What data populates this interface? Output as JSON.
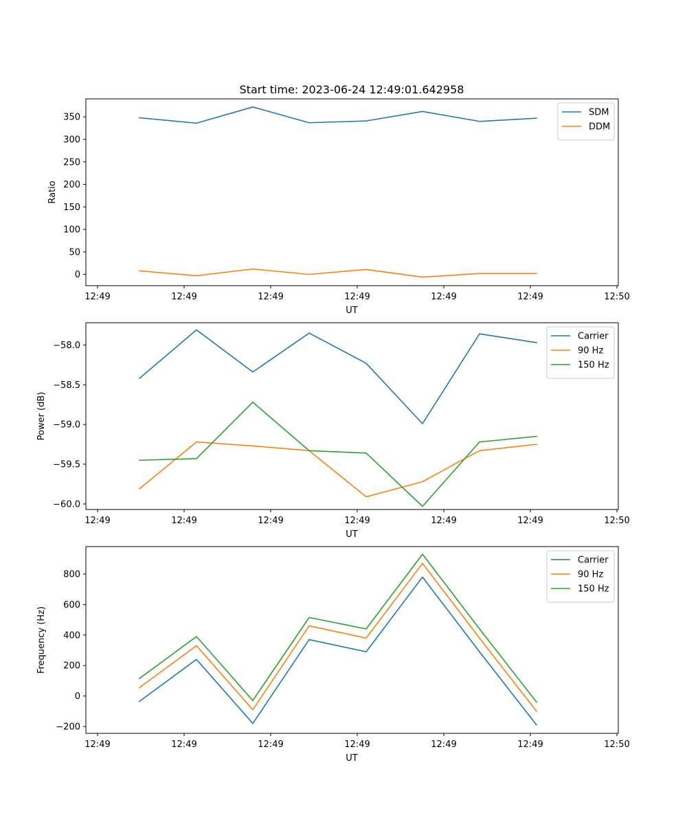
{
  "figure_title": "Start time: 2023-06-24 12:49:01.642958",
  "colors": {
    "blue": "#1f77b4",
    "orange": "#ff7f0e",
    "green": "#2ca02c"
  },
  "chart_data": [
    {
      "type": "line",
      "xlabel": "UT",
      "ylabel": "Ratio",
      "x_tick_labels": [
        "12:49",
        "12:49",
        "12:49",
        "12:49",
        "12:49",
        "12:49",
        "12:50"
      ],
      "ylim": [
        -25,
        390
      ],
      "y_ticks": [
        0,
        50,
        100,
        150,
        200,
        250,
        300,
        350
      ],
      "y_tick_labels": [
        "0",
        "50",
        "100",
        "150",
        "200",
        "250",
        "300",
        "350"
      ],
      "grid": false,
      "legend": "top-right",
      "series": [
        {
          "name": "SDM",
          "color": "#1f77b4",
          "values": [
            348,
            336,
            372,
            337,
            341,
            362,
            340,
            347
          ]
        },
        {
          "name": "DDM",
          "color": "#ff7f0e",
          "values": [
            8,
            -3,
            12,
            0,
            11,
            -6,
            2,
            2
          ]
        }
      ]
    },
    {
      "type": "line",
      "xlabel": "UT",
      "ylabel": "Power (dB)",
      "x_tick_labels": [
        "12:49",
        "12:49",
        "12:49",
        "12:49",
        "12:49",
        "12:49",
        "12:50"
      ],
      "ylim": [
        -60.07,
        -57.72
      ],
      "y_ticks": [
        -60.0,
        -59.5,
        -59.0,
        -58.5,
        -58.0
      ],
      "y_tick_labels": [
        "−60.0",
        "−59.5",
        "−59.0",
        "−58.5",
        "−58.0"
      ],
      "grid": false,
      "legend": "top-right",
      "series": [
        {
          "name": "Carrier",
          "color": "#1f77b4",
          "values": [
            -58.42,
            -57.81,
            -58.34,
            -57.85,
            -58.23,
            -58.99,
            -57.86,
            -57.97
          ]
        },
        {
          "name": "90 Hz",
          "color": "#ff7f0e",
          "values": [
            -59.81,
            -59.22,
            -59.27,
            -59.33,
            -59.91,
            -59.72,
            -59.33,
            -59.25
          ]
        },
        {
          "name": "150 Hz",
          "color": "#2ca02c",
          "values": [
            -59.45,
            -59.43,
            -58.72,
            -59.33,
            -59.36,
            -60.03,
            -59.22,
            -59.15
          ]
        }
      ]
    },
    {
      "type": "line",
      "xlabel": "UT",
      "ylabel": "Frequency (Hz)",
      "x_tick_labels": [
        "12:49",
        "12:49",
        "12:49",
        "12:49",
        "12:49",
        "12:49",
        "12:50"
      ],
      "ylim": [
        -245,
        980
      ],
      "y_ticks": [
        -200,
        0,
        200,
        400,
        600,
        800
      ],
      "y_tick_labels": [
        "−200",
        "0",
        "200",
        "400",
        "600",
        "800"
      ],
      "grid": false,
      "legend": "top-right",
      "series": [
        {
          "name": "Carrier",
          "color": "#1f77b4",
          "values": [
            -35,
            240,
            -180,
            370,
            290,
            780,
            290,
            -190
          ]
        },
        {
          "name": "90 Hz",
          "color": "#ff7f0e",
          "values": [
            55,
            330,
            -90,
            460,
            380,
            870,
            380,
            -100
          ]
        },
        {
          "name": "150 Hz",
          "color": "#2ca02c",
          "values": [
            115,
            390,
            -30,
            515,
            440,
            930,
            440,
            -40
          ]
        }
      ]
    }
  ]
}
